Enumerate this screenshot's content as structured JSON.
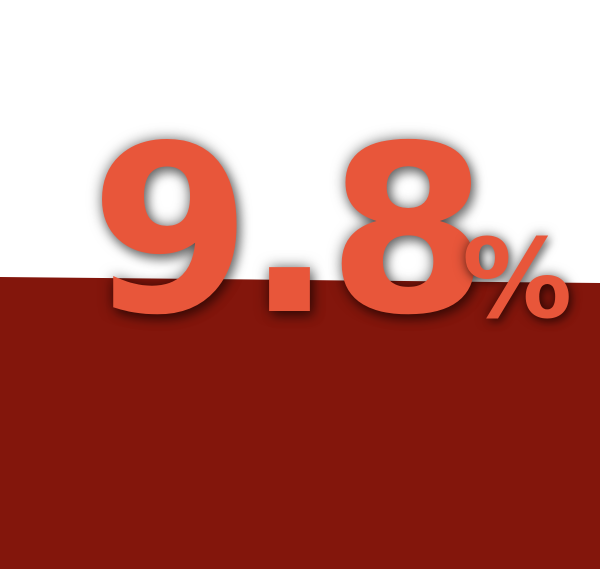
{
  "stat": {
    "value": "9.8",
    "unit": "%"
  },
  "colors": {
    "background_top": "#ffffff",
    "background_bottom": "#83160c",
    "accent": "#e8563a"
  }
}
